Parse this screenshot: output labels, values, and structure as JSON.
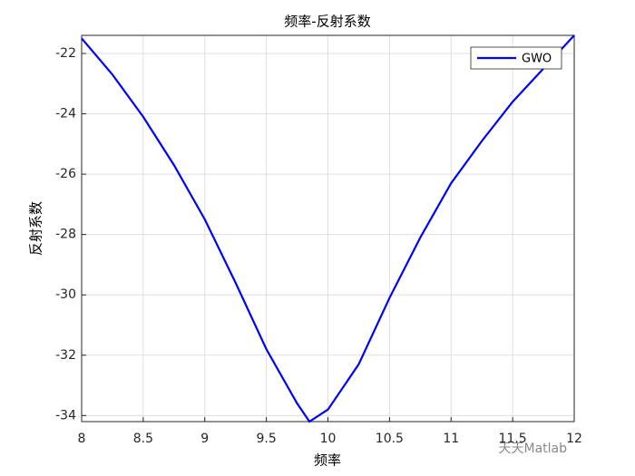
{
  "chart_data": {
    "type": "line",
    "title": "频率-反射系数",
    "x_label": "频率",
    "y_label": "反射系数",
    "x": [
      8,
      8.25,
      8.5,
      8.75,
      9,
      9.25,
      9.5,
      9.75,
      9.85,
      10,
      10.25,
      10.5,
      10.75,
      11,
      11.25,
      11.5,
      11.75,
      12
    ],
    "series": [
      {
        "name": "GWO",
        "color": "#0000ff",
        "values": [
          -21.5,
          -22.7,
          -24.1,
          -25.7,
          -27.5,
          -29.6,
          -31.8,
          -33.6,
          -34.2,
          -33.8,
          -32.3,
          -30.1,
          -28.1,
          -26.3,
          -24.9,
          -23.6,
          -22.5,
          -21.4
        ]
      }
    ],
    "xlim": [
      8,
      12
    ],
    "xticks": [
      8,
      8.5,
      9,
      9.5,
      10,
      10.5,
      11,
      11.5,
      12
    ],
    "ylim": [
      -34.2,
      -21.4
    ],
    "yticks": [
      -34,
      -32,
      -30,
      -28,
      -26,
      -24,
      -22
    ],
    "grid": true,
    "legend": "top-right",
    "watermark": "天天Matlab"
  }
}
